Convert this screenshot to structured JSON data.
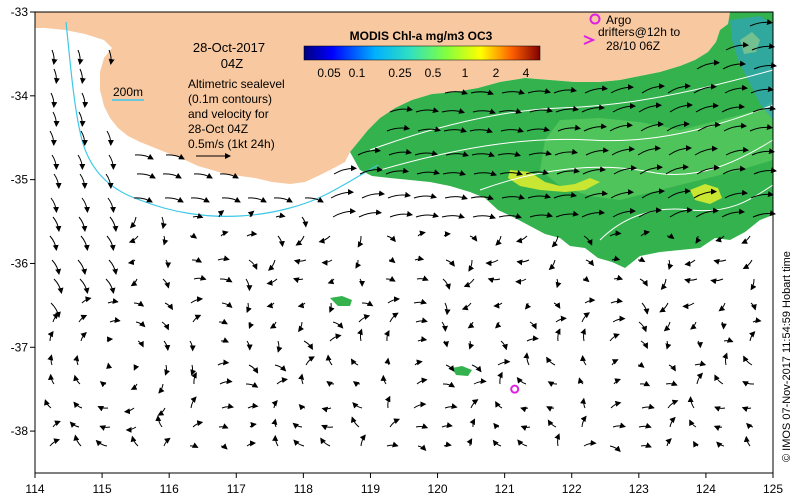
{
  "map": {
    "date_line1": "28-Oct-2017",
    "date_line2": "04Z",
    "colorbar_title": "MODIS Chl-a mg/m3 OC3",
    "colorbar_ticks": [
      "0.05",
      "0.1",
      "0.25",
      "0.5",
      "1",
      "2",
      "4"
    ],
    "isobath_label": "200m",
    "sealevel_text": [
      "Altimetric sealevel",
      "(0.1m contours)",
      "and velocity for",
      "28-Oct 04Z",
      "0.5m/s (1kt 24h)"
    ],
    "argo_label": "Argo",
    "drifters_text": [
      "drifters@12h to",
      "28/10 06Z"
    ],
    "credit": "© IMOS 07-Nov-2017 11:54:59 Hobart time",
    "colors": {
      "land": "#f8c9a0",
      "isobath": "#3ec8e8",
      "argo": "#e020e0",
      "chl_green": "#33b24d",
      "chl_yellow": "#c8e632"
    },
    "lon_range": [
      114,
      125
    ],
    "lat_range": [
      -38.5,
      -33
    ],
    "lon_ticks": [
      114,
      115,
      116,
      117,
      118,
      119,
      120,
      121,
      122,
      123,
      124,
      125
    ],
    "lat_ticks": [
      -33,
      -34,
      -35,
      -36,
      -37,
      -38
    ],
    "argo_float": {
      "lon": 121.15,
      "lat": -37.5
    }
  }
}
